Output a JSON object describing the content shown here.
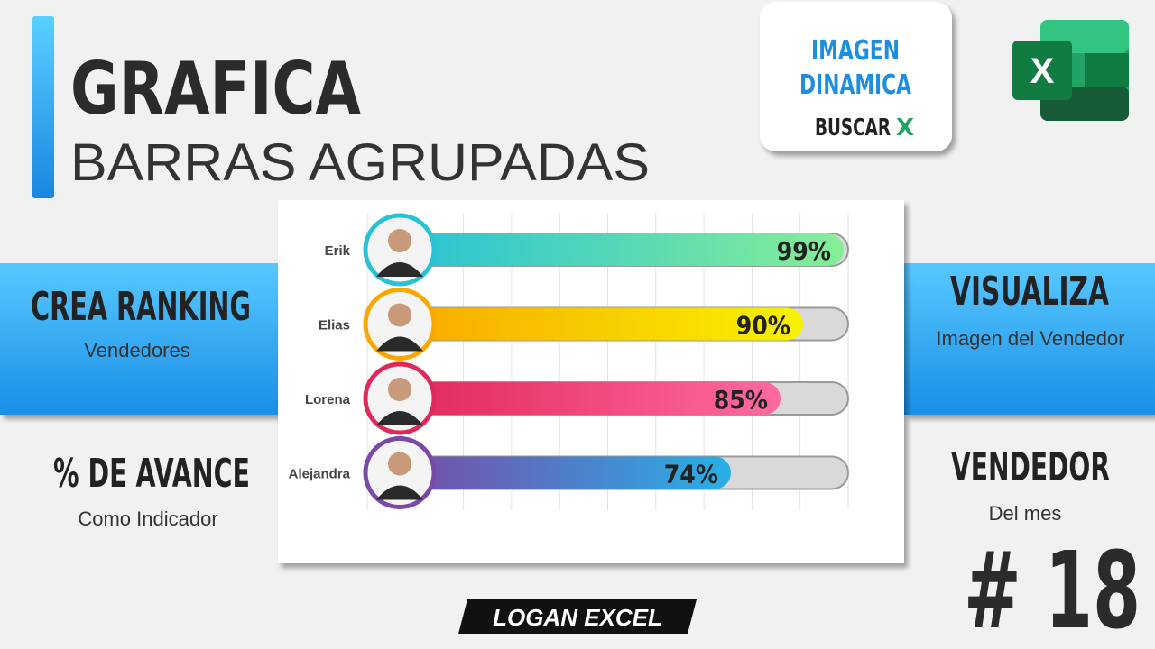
{
  "header": {
    "title": "GRAFICA",
    "subtitle": "BARRAS AGRUPADAS"
  },
  "badge": {
    "line1": "IMAGEN",
    "line2": "DINAMICA",
    "func": "BUSCAR",
    "func_letter": "X"
  },
  "logo_letter": "X",
  "left_panel": {
    "heading": "CREA RANKING",
    "sub": "Vendedores",
    "heading2": "% DE AVANCE",
    "sub2": "Como Indicador"
  },
  "right_panel": {
    "heading": "VISUALIZA",
    "sub": "Imagen del Vendedor",
    "heading2": "VENDEDOR",
    "sub2": "Del mes",
    "number": "# 18"
  },
  "footer": "LOGAN EXCEL",
  "chart_data": {
    "type": "bar",
    "orientation": "horizontal",
    "categories": [
      "Erik",
      "Elias",
      "Lorena",
      "Alejandra"
    ],
    "values": [
      99,
      90,
      85,
      74
    ],
    "value_labels": [
      "99%",
      "90%",
      "85%",
      "74%"
    ],
    "colors": [
      [
        "#27c2d6",
        "#86ee96"
      ],
      [
        "#f9a800",
        "#f7f200"
      ],
      [
        "#e0285a",
        "#ff6aa0"
      ],
      [
        "#7a4aa8",
        "#27b0e6"
      ]
    ],
    "xlim": [
      0,
      100
    ],
    "grid": true
  }
}
